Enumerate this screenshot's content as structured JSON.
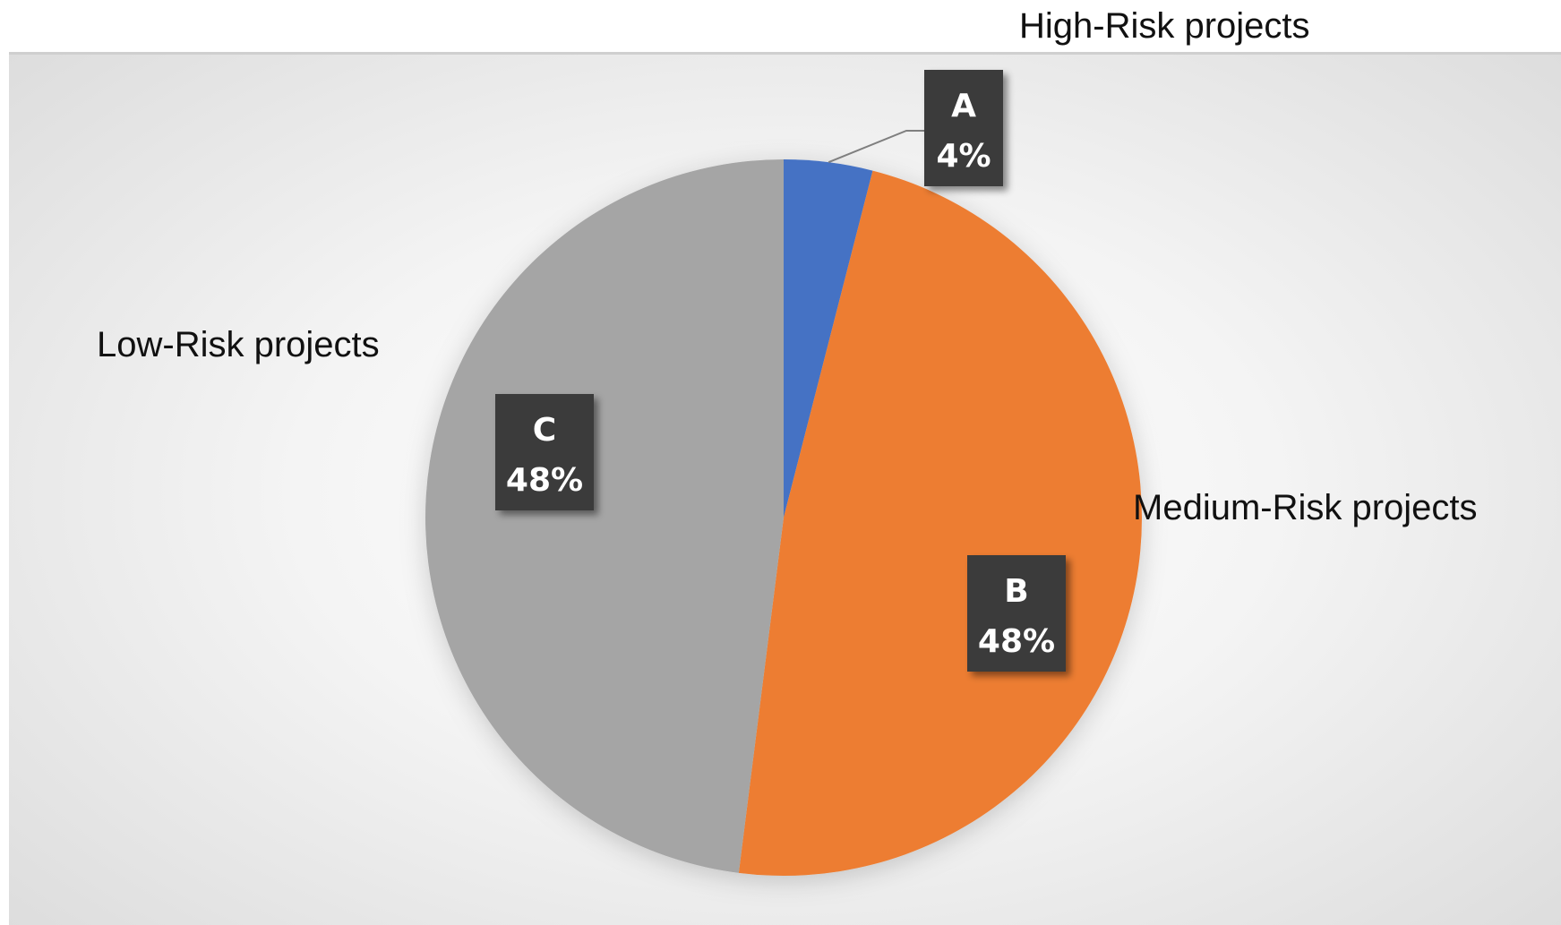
{
  "chart_data": {
    "type": "pie",
    "title": "",
    "slices": [
      {
        "name": "High-Risk projects",
        "letter": "A",
        "value": 4,
        "label": "4%",
        "color": "#4472C4"
      },
      {
        "name": "Medium-Risk projects",
        "letter": "B",
        "value": 48,
        "label": "48%",
        "color": "#ED7D31"
      },
      {
        "name": "Low-Risk projects",
        "letter": "C",
        "value": 48,
        "label": "48%",
        "color": "#A5A5A5"
      }
    ],
    "start_angle": "12 o'clock",
    "direction": "clockwise",
    "data_label_background": "#3a3a3a"
  }
}
